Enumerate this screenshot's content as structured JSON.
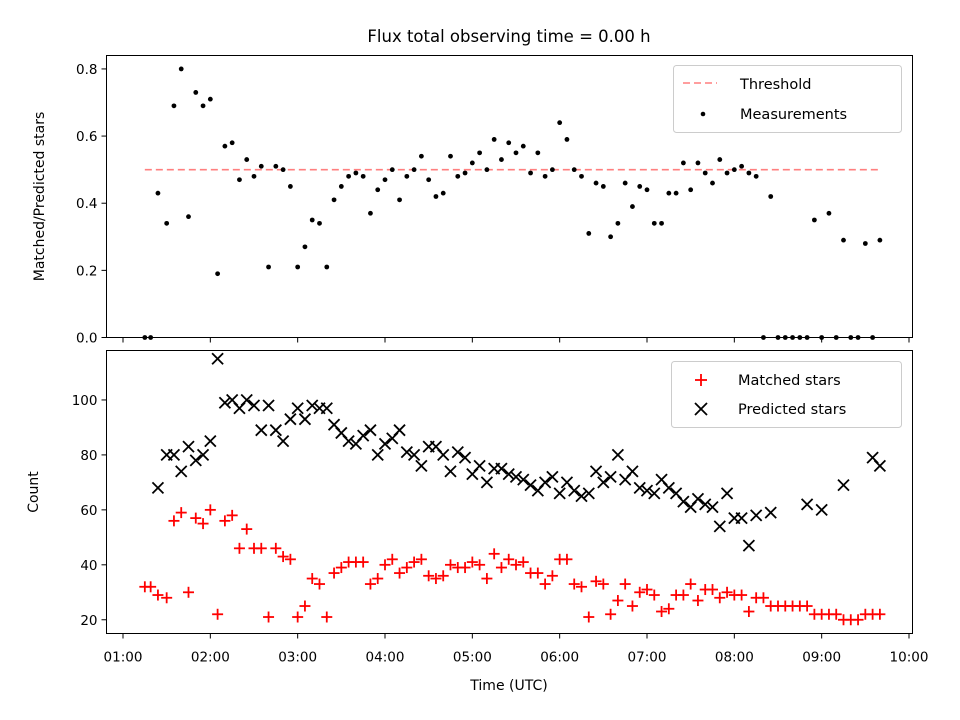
{
  "chart_data": [
    {
      "type": "scatter",
      "title": "Flux total observing time = 0.00 h",
      "xlabel": "",
      "ylabel": "Matched/Predicted stars",
      "xlim": [
        "01:00",
        "10:00"
      ],
      "ylim": [
        0,
        0.84
      ],
      "yticks": [
        "0.0",
        "0.2",
        "0.4",
        "0.6",
        "0.8"
      ],
      "legend": "top-right",
      "threshold": {
        "name": "Threshold",
        "value": 0.5,
        "x_start": "01:15",
        "x_end": "09:40",
        "color": "#ff7f7f",
        "style": "dashed"
      },
      "series": [
        {
          "name": "Measurements",
          "color": "#000000",
          "marker": "dot",
          "x": [
            "01:15",
            "01:19",
            "01:24",
            "01:30",
            "01:35",
            "01:40",
            "01:45",
            "01:50",
            "01:55",
            "02:00",
            "02:05",
            "02:10",
            "02:15",
            "02:20",
            "02:25",
            "02:30",
            "02:35",
            "02:40",
            "02:45",
            "02:50",
            "02:55",
            "03:00",
            "03:05",
            "03:10",
            "03:15",
            "03:20",
            "03:25",
            "03:30",
            "03:35",
            "03:40",
            "03:45",
            "03:50",
            "03:55",
            "04:00",
            "04:05",
            "04:10",
            "04:15",
            "04:20",
            "04:25",
            "04:30",
            "04:35",
            "04:40",
            "04:45",
            "04:50",
            "04:55",
            "05:00",
            "05:05",
            "05:10",
            "05:15",
            "05:20",
            "05:25",
            "05:30",
            "05:35",
            "05:40",
            "05:45",
            "05:50",
            "05:55",
            "06:00",
            "06:05",
            "06:10",
            "06:15",
            "06:20",
            "06:25",
            "06:30",
            "06:35",
            "06:40",
            "06:45",
            "06:50",
            "06:55",
            "07:00",
            "07:05",
            "07:10",
            "07:15",
            "07:20",
            "07:25",
            "07:30",
            "07:35",
            "07:40",
            "07:45",
            "07:50",
            "07:55",
            "08:00",
            "08:05",
            "08:10",
            "08:15",
            "08:20",
            "08:25",
            "08:30",
            "08:35",
            "08:40",
            "08:45",
            "08:50",
            "08:55",
            "09:00",
            "09:05",
            "09:10",
            "09:15",
            "09:20",
            "09:25",
            "09:30",
            "09:35",
            "09:40"
          ],
          "y": [
            0.0,
            0.0,
            0.43,
            0.34,
            0.69,
            0.8,
            0.36,
            0.73,
            0.69,
            0.71,
            0.19,
            0.57,
            0.58,
            0.47,
            0.53,
            0.48,
            0.51,
            0.21,
            0.51,
            0.5,
            0.45,
            0.21,
            0.27,
            0.35,
            0.34,
            0.21,
            0.41,
            0.45,
            0.48,
            0.49,
            0.48,
            0.37,
            0.44,
            0.47,
            0.5,
            0.41,
            0.48,
            0.5,
            0.54,
            0.47,
            0.42,
            0.43,
            0.54,
            0.48,
            0.49,
            0.52,
            0.55,
            0.5,
            0.59,
            0.53,
            0.58,
            0.55,
            0.57,
            0.49,
            0.55,
            0.48,
            0.5,
            0.64,
            0.59,
            0.5,
            0.48,
            0.31,
            0.46,
            0.45,
            0.3,
            0.34,
            0.46,
            0.39,
            0.45,
            0.44,
            0.34,
            0.34,
            0.43,
            0.43,
            0.52,
            0.44,
            0.52,
            0.49,
            0.46,
            0.53,
            0.49,
            0.5,
            0.51,
            0.49,
            0.48,
            0.0,
            0.42,
            0.0,
            0.0,
            0.0,
            0.0,
            0.0,
            0.35,
            0.0,
            0.37,
            0.0,
            0.29,
            0.0,
            0.0,
            0.28,
            0.0,
            0.29
          ]
        }
      ]
    },
    {
      "type": "scatter",
      "title": "",
      "xlabel": "Time (UTC)",
      "ylabel": "Count",
      "xlim": [
        "01:00",
        "10:00"
      ],
      "ylim": [
        15,
        118
      ],
      "xticks": [
        "01:00",
        "02:00",
        "03:00",
        "04:00",
        "05:00",
        "06:00",
        "07:00",
        "08:00",
        "09:00",
        "10:00"
      ],
      "yticks": [
        "20",
        "40",
        "60",
        "80",
        "100"
      ],
      "legend": "top-right",
      "series": [
        {
          "name": "Matched stars",
          "color": "#ff0000",
          "marker": "plus",
          "x": [
            "01:15",
            "01:19",
            "01:24",
            "01:30",
            "01:35",
            "01:40",
            "01:45",
            "01:50",
            "01:55",
            "02:00",
            "02:05",
            "02:10",
            "02:15",
            "02:20",
            "02:25",
            "02:30",
            "02:35",
            "02:40",
            "02:45",
            "02:50",
            "02:55",
            "03:00",
            "03:05",
            "03:10",
            "03:15",
            "03:20",
            "03:25",
            "03:30",
            "03:35",
            "03:40",
            "03:45",
            "03:50",
            "03:55",
            "04:00",
            "04:05",
            "04:10",
            "04:15",
            "04:20",
            "04:25",
            "04:30",
            "04:35",
            "04:40",
            "04:45",
            "04:50",
            "04:55",
            "05:00",
            "05:05",
            "05:10",
            "05:15",
            "05:20",
            "05:25",
            "05:30",
            "05:35",
            "05:40",
            "05:45",
            "05:50",
            "05:55",
            "06:00",
            "06:05",
            "06:10",
            "06:15",
            "06:20",
            "06:25",
            "06:30",
            "06:35",
            "06:40",
            "06:45",
            "06:50",
            "06:55",
            "07:00",
            "07:05",
            "07:10",
            "07:15",
            "07:20",
            "07:25",
            "07:30",
            "07:35",
            "07:40",
            "07:45",
            "07:50",
            "07:55",
            "08:00",
            "08:05",
            "08:10",
            "08:15",
            "08:20",
            "08:25",
            "08:30",
            "08:35",
            "08:40",
            "08:45",
            "08:50",
            "08:55",
            "09:00",
            "09:05",
            "09:10",
            "09:15",
            "09:20",
            "09:25",
            "09:30",
            "09:35",
            "09:40"
          ],
          "y": [
            32,
            32,
            29,
            28,
            56,
            59,
            30,
            57,
            55,
            60,
            22,
            56,
            58,
            46,
            53,
            46,
            46,
            21,
            46,
            43,
            42,
            21,
            25,
            35,
            33,
            21,
            37,
            39,
            41,
            41,
            41,
            33,
            35,
            40,
            42,
            37,
            39,
            41,
            42,
            36,
            35,
            36,
            40,
            39,
            39,
            41,
            40,
            35,
            44,
            39,
            42,
            40,
            41,
            37,
            37,
            33,
            36,
            42,
            42,
            33,
            32,
            21,
            34,
            33,
            22,
            27,
            33,
            25,
            30,
            31,
            29,
            23,
            24,
            29,
            29,
            33,
            27,
            31,
            31,
            28,
            30,
            29,
            29,
            23,
            28,
            28,
            25,
            25,
            25,
            25,
            25,
            25,
            22,
            22,
            22,
            22,
            20,
            20,
            20,
            22,
            22,
            22
          ]
        },
        {
          "name": "Predicted stars",
          "color": "#000000",
          "marker": "x",
          "x": [
            "01:24",
            "01:30",
            "01:35",
            "01:40",
            "01:45",
            "01:50",
            "01:55",
            "02:00",
            "02:05",
            "02:10",
            "02:15",
            "02:20",
            "02:25",
            "02:30",
            "02:35",
            "02:40",
            "02:45",
            "02:50",
            "02:55",
            "03:00",
            "03:05",
            "03:10",
            "03:15",
            "03:20",
            "03:25",
            "03:30",
            "03:35",
            "03:40",
            "03:45",
            "03:50",
            "03:55",
            "04:00",
            "04:05",
            "04:10",
            "04:15",
            "04:20",
            "04:25",
            "04:30",
            "04:35",
            "04:40",
            "04:45",
            "04:50",
            "04:55",
            "05:00",
            "05:05",
            "05:10",
            "05:15",
            "05:20",
            "05:25",
            "05:30",
            "05:35",
            "05:40",
            "05:45",
            "05:50",
            "05:55",
            "06:00",
            "06:05",
            "06:10",
            "06:15",
            "06:20",
            "06:25",
            "06:30",
            "06:35",
            "06:40",
            "06:45",
            "06:50",
            "06:55",
            "07:00",
            "07:05",
            "07:10",
            "07:15",
            "07:20",
            "07:25",
            "07:30",
            "07:35",
            "07:40",
            "07:45",
            "07:50",
            "07:55",
            "08:00",
            "08:05",
            "08:10",
            "08:15",
            "08:25",
            "08:50",
            "09:00",
            "09:15",
            "09:35",
            "09:40"
          ],
          "y": [
            68,
            80,
            80,
            74,
            83,
            78,
            80,
            85,
            115,
            99,
            100,
            97,
            100,
            98,
            89,
            98,
            89,
            85,
            93,
            97,
            93,
            98,
            97,
            97,
            91,
            88,
            85,
            84,
            87,
            89,
            80,
            84,
            86,
            89,
            81,
            80,
            76,
            83,
            83,
            80,
            74,
            81,
            79,
            73,
            76,
            70,
            75,
            75,
            73,
            72,
            71,
            69,
            67,
            70,
            72,
            66,
            70,
            67,
            65,
            66,
            74,
            70,
            72,
            80,
            71,
            74,
            68,
            67,
            66,
            71,
            68,
            66,
            63,
            61,
            64,
            62,
            61,
            54,
            66,
            57,
            57,
            47,
            58,
            59,
            62,
            60,
            69,
            79,
            76
          ]
        }
      ]
    }
  ]
}
